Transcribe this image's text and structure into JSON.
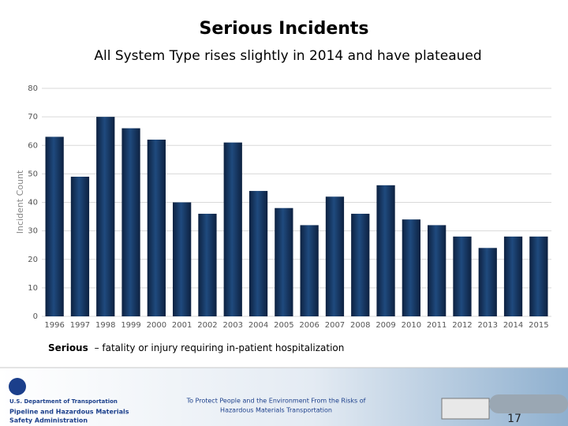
{
  "chart_data": {
    "type": "bar",
    "title": "Serious Incidents",
    "subtitle": "All System Type rises slightly in 2014 and have plateaued",
    "y_label": "Incident Count",
    "categories": [
      "1996",
      "1997",
      "1998",
      "1999",
      "2000",
      "2001",
      "2002",
      "2003",
      "2004",
      "2005",
      "2006",
      "2007",
      "2008",
      "2009",
      "2010",
      "2011",
      "2012",
      "2013",
      "2014",
      "2015"
    ],
    "values": [
      63,
      49,
      70,
      66,
      62,
      40,
      36,
      61,
      44,
      38,
      32,
      42,
      36,
      46,
      34,
      32,
      28,
      24,
      28,
      28
    ],
    "color": "#1f4a7e",
    "ylim": [
      0,
      80
    ],
    "yticks": [
      0,
      10,
      20,
      30,
      40,
      50,
      60,
      70,
      80
    ],
    "grid": true
  },
  "footnote": {
    "term": "Serious",
    "text": "– fatality or injury requiring in-patient hospitalization"
  },
  "footer": {
    "agency": "U.S. Department of Transportation",
    "administration_1": "Pipeline and Hazardous Materials",
    "administration_2": "Safety Administration",
    "motto_1": "To Protect People and the Environment From the Risks of",
    "motto_2": "Hazardous Materials Transportation",
    "page": "17"
  }
}
